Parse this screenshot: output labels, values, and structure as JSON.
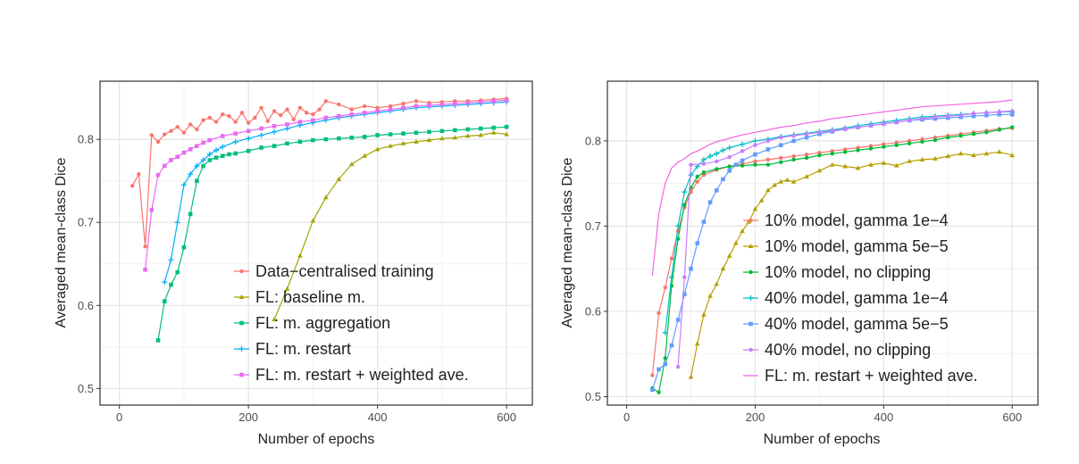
{
  "chart_data": [
    {
      "type": "line",
      "xlabel": "Number of epochs",
      "ylabel": "Averaged mean-class Dice",
      "xlim": [
        -30,
        640
      ],
      "ylim": [
        0.48,
        0.87
      ],
      "xticks": [
        "0",
        "200",
        "400",
        "600"
      ],
      "xtick_values": [
        0,
        200,
        400,
        600
      ],
      "yticks": [
        "0.5",
        "0.6",
        "0.7",
        "0.8"
      ],
      "ytick_values": [
        0.5,
        0.6,
        0.7,
        0.8
      ],
      "legend_position": "bottom-right",
      "series": [
        {
          "name": "Data−centralised training",
          "color": "#f8766d",
          "marker": "circle",
          "x": [
            20,
            30,
            40,
            50,
            60,
            70,
            80,
            90,
            100,
            110,
            120,
            130,
            140,
            150,
            160,
            170,
            180,
            190,
            200,
            210,
            220,
            230,
            240,
            250,
            260,
            270,
            280,
            290,
            300,
            310,
            320,
            340,
            360,
            380,
            400,
            420,
            440,
            460,
            480,
            500,
            520,
            540,
            560,
            580,
            600
          ],
          "y": [
            0.744,
            0.758,
            0.671,
            0.805,
            0.797,
            0.806,
            0.81,
            0.815,
            0.808,
            0.818,
            0.812,
            0.823,
            0.826,
            0.821,
            0.83,
            0.828,
            0.821,
            0.832,
            0.82,
            0.826,
            0.838,
            0.822,
            0.834,
            0.829,
            0.836,
            0.824,
            0.838,
            0.832,
            0.83,
            0.836,
            0.846,
            0.842,
            0.836,
            0.84,
            0.838,
            0.84,
            0.843,
            0.846,
            0.844,
            0.845,
            0.846,
            0.846,
            0.847,
            0.848,
            0.849
          ]
        },
        {
          "name": "FL: baseline m.",
          "color": "#a3a500",
          "marker": "triangle",
          "x": [
            240,
            260,
            280,
            300,
            320,
            340,
            360,
            380,
            400,
            420,
            440,
            460,
            480,
            500,
            520,
            540,
            560,
            580,
            600
          ],
          "y": [
            0.583,
            0.62,
            0.66,
            0.702,
            0.73,
            0.752,
            0.77,
            0.78,
            0.788,
            0.792,
            0.795,
            0.797,
            0.799,
            0.801,
            0.802,
            0.804,
            0.805,
            0.808,
            0.806
          ]
        },
        {
          "name": "FL: m. aggregation",
          "color": "#00bf7d",
          "marker": "square",
          "x": [
            60,
            70,
            80,
            90,
            100,
            110,
            120,
            130,
            140,
            150,
            160,
            170,
            180,
            200,
            220,
            240,
            260,
            280,
            300,
            320,
            340,
            360,
            380,
            400,
            420,
            440,
            460,
            480,
            500,
            520,
            540,
            560,
            580,
            600
          ],
          "y": [
            0.558,
            0.605,
            0.625,
            0.64,
            0.67,
            0.71,
            0.75,
            0.768,
            0.775,
            0.778,
            0.78,
            0.782,
            0.783,
            0.786,
            0.79,
            0.792,
            0.795,
            0.797,
            0.799,
            0.8,
            0.801,
            0.802,
            0.803,
            0.805,
            0.806,
            0.807,
            0.808,
            0.809,
            0.81,
            0.811,
            0.812,
            0.813,
            0.814,
            0.815
          ]
        },
        {
          "name": "FL: m. restart",
          "color": "#00b0f6",
          "marker": "plus",
          "x": [
            70,
            80,
            90,
            100,
            110,
            120,
            130,
            140,
            150,
            160,
            180,
            200,
            220,
            240,
            260,
            280,
            300,
            320,
            340,
            360,
            380,
            400,
            420,
            440,
            460,
            480,
            500,
            520,
            540,
            560,
            580,
            600
          ],
          "y": [
            0.628,
            0.655,
            0.7,
            0.745,
            0.758,
            0.768,
            0.775,
            0.782,
            0.787,
            0.791,
            0.797,
            0.801,
            0.805,
            0.809,
            0.813,
            0.817,
            0.82,
            0.823,
            0.826,
            0.828,
            0.83,
            0.832,
            0.834,
            0.836,
            0.838,
            0.839,
            0.84,
            0.841,
            0.842,
            0.843,
            0.844,
            0.845
          ]
        },
        {
          "name": "FL: m. restart + weighted ave.",
          "color": "#e76bf3",
          "marker": "square",
          "x": [
            40,
            50,
            60,
            70,
            80,
            90,
            100,
            110,
            120,
            130,
            140,
            160,
            180,
            200,
            220,
            240,
            260,
            280,
            300,
            320,
            340,
            360,
            380,
            400,
            420,
            440,
            460,
            480,
            500,
            520,
            540,
            560,
            580,
            600
          ],
          "y": [
            0.643,
            0.715,
            0.757,
            0.768,
            0.775,
            0.779,
            0.784,
            0.788,
            0.792,
            0.796,
            0.799,
            0.804,
            0.807,
            0.81,
            0.813,
            0.816,
            0.818,
            0.821,
            0.823,
            0.826,
            0.828,
            0.83,
            0.832,
            0.834,
            0.836,
            0.838,
            0.84,
            0.841,
            0.842,
            0.843,
            0.844,
            0.845,
            0.846,
            0.847
          ]
        }
      ]
    },
    {
      "type": "line",
      "xlabel": "Number of epochs",
      "ylabel": "Averaged mean-class Dice",
      "xlim": [
        -30,
        640
      ],
      "ylim": [
        0.49,
        0.87
      ],
      "xticks": [
        "0",
        "200",
        "400",
        "600"
      ],
      "xtick_values": [
        0,
        200,
        400,
        600
      ],
      "yticks": [
        "0.5",
        "0.6",
        "0.7",
        "0.8"
      ],
      "ytick_values": [
        0.5,
        0.6,
        0.7,
        0.8
      ],
      "legend_position": "bottom-right",
      "series": [
        {
          "name": "10% model, gamma 1e−4",
          "color": "#f8766d",
          "marker": "circle",
          "x": [
            40,
            50,
            60,
            70,
            80,
            90,
            100,
            110,
            120,
            140,
            160,
            180,
            200,
            220,
            240,
            260,
            280,
            300,
            320,
            340,
            360,
            380,
            400,
            420,
            440,
            460,
            480,
            500,
            520,
            540,
            560,
            580,
            600
          ],
          "y": [
            0.525,
            0.598,
            0.628,
            0.662,
            0.694,
            0.722,
            0.74,
            0.752,
            0.76,
            0.766,
            0.77,
            0.773,
            0.776,
            0.778,
            0.78,
            0.782,
            0.784,
            0.786,
            0.788,
            0.79,
            0.792,
            0.794,
            0.796,
            0.798,
            0.8,
            0.802,
            0.804,
            0.806,
            0.808,
            0.81,
            0.812,
            0.814,
            0.815
          ]
        },
        {
          "name": "10% model, gamma 5e−5",
          "color": "#b79f00",
          "marker": "triangle",
          "x": [
            100,
            110,
            120,
            130,
            140,
            150,
            160,
            170,
            180,
            190,
            200,
            210,
            220,
            230,
            240,
            250,
            260,
            280,
            300,
            320,
            340,
            360,
            380,
            400,
            420,
            440,
            460,
            480,
            500,
            520,
            540,
            560,
            580,
            600
          ],
          "y": [
            0.523,
            0.562,
            0.596,
            0.618,
            0.632,
            0.65,
            0.665,
            0.68,
            0.694,
            0.705,
            0.72,
            0.73,
            0.742,
            0.748,
            0.752,
            0.754,
            0.752,
            0.758,
            0.765,
            0.772,
            0.77,
            0.768,
            0.772,
            0.774,
            0.771,
            0.776,
            0.778,
            0.779,
            0.782,
            0.785,
            0.783,
            0.785,
            0.787,
            0.783
          ]
        },
        {
          "name": "10% model, no clipping",
          "color": "#00ba38",
          "marker": "circle",
          "x": [
            40,
            50,
            60,
            70,
            80,
            90,
            100,
            110,
            120,
            140,
            160,
            180,
            200,
            220,
            240,
            260,
            280,
            300,
            320,
            340,
            360,
            380,
            400,
            420,
            440,
            460,
            480,
            500,
            520,
            540,
            560,
            580,
            600
          ],
          "y": [
            0.51,
            0.505,
            0.545,
            0.63,
            0.685,
            0.725,
            0.745,
            0.758,
            0.763,
            0.767,
            0.77,
            0.771,
            0.772,
            0.772,
            0.775,
            0.778,
            0.78,
            0.783,
            0.785,
            0.787,
            0.789,
            0.791,
            0.793,
            0.795,
            0.797,
            0.799,
            0.801,
            0.804,
            0.806,
            0.808,
            0.81,
            0.813,
            0.816
          ]
        },
        {
          "name": "40% model, gamma 1e−4",
          "color": "#00bfc4",
          "marker": "plus",
          "x": [
            60,
            70,
            80,
            90,
            100,
            110,
            120,
            130,
            140,
            150,
            160,
            180,
            200,
            220,
            240,
            260,
            280,
            300,
            320,
            340,
            360,
            380,
            400,
            420,
            440,
            460,
            480,
            500,
            520,
            540,
            560,
            580,
            600
          ],
          "y": [
            0.575,
            0.64,
            0.7,
            0.74,
            0.76,
            0.77,
            0.778,
            0.782,
            0.785,
            0.789,
            0.792,
            0.796,
            0.8,
            0.802,
            0.805,
            0.807,
            0.809,
            0.811,
            0.813,
            0.815,
            0.818,
            0.82,
            0.822,
            0.824,
            0.826,
            0.828,
            0.829,
            0.83,
            0.831,
            0.832,
            0.833,
            0.834,
            0.834
          ]
        },
        {
          "name": "40% model, gamma 5e−5",
          "color": "#619cff",
          "marker": "square",
          "x": [
            40,
            50,
            60,
            70,
            80,
            90,
            100,
            110,
            120,
            130,
            140,
            150,
            160,
            170,
            180,
            200,
            220,
            240,
            260,
            280,
            300,
            320,
            340,
            360,
            380,
            400,
            420,
            440,
            460,
            480,
            500,
            520,
            540,
            560,
            580,
            600
          ],
          "y": [
            0.508,
            0.532,
            0.538,
            0.56,
            0.59,
            0.62,
            0.65,
            0.68,
            0.705,
            0.728,
            0.742,
            0.755,
            0.765,
            0.772,
            0.777,
            0.784,
            0.79,
            0.795,
            0.8,
            0.804,
            0.808,
            0.811,
            0.814,
            0.816,
            0.818,
            0.82,
            0.822,
            0.824,
            0.825,
            0.826,
            0.827,
            0.828,
            0.829,
            0.83,
            0.831,
            0.831
          ]
        },
        {
          "name": "40% model, no clipping",
          "color": "#c77cff",
          "marker": "circle",
          "x": [
            80,
            90,
            100,
            120,
            140,
            160,
            180,
            200,
            220,
            240,
            260,
            280,
            300,
            320,
            340,
            360,
            380,
            400,
            420,
            440,
            460,
            480,
            500,
            520,
            540,
            560,
            580,
            600
          ],
          "y": [
            0.535,
            0.64,
            0.772,
            0.773,
            0.776,
            0.781,
            0.788,
            0.795,
            0.8,
            0.804,
            0.806,
            0.808,
            0.81,
            0.812,
            0.814,
            0.816,
            0.818,
            0.82,
            0.822,
            0.824,
            0.826,
            0.828,
            0.829,
            0.83,
            0.832,
            0.833,
            0.834,
            0.835
          ]
        },
        {
          "name": "FL: m. restart + weighted ave.",
          "color": "#f564e3",
          "marker": "none",
          "x": [
            40,
            50,
            60,
            70,
            80,
            90,
            100,
            110,
            120,
            130,
            140,
            160,
            180,
            200,
            220,
            240,
            260,
            280,
            300,
            320,
            340,
            360,
            380,
            400,
            420,
            440,
            460,
            480,
            500,
            520,
            540,
            560,
            580,
            600
          ],
          "y": [
            0.642,
            0.715,
            0.75,
            0.768,
            0.775,
            0.779,
            0.785,
            0.788,
            0.792,
            0.796,
            0.799,
            0.803,
            0.807,
            0.81,
            0.813,
            0.816,
            0.818,
            0.821,
            0.823,
            0.826,
            0.828,
            0.83,
            0.832,
            0.834,
            0.836,
            0.838,
            0.84,
            0.841,
            0.842,
            0.843,
            0.844,
            0.845,
            0.846,
            0.848
          ]
        }
      ]
    }
  ]
}
